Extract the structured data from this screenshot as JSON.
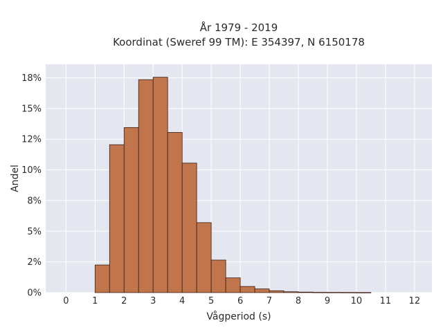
{
  "chart_data": {
    "type": "bar",
    "title_line1": "År 1979 - 2019",
    "title_line2": "Koordinat (Sweref 99 TM): E 354397, N 6150178",
    "xlabel": "Vågperiod (s)",
    "ylabel": "Andel",
    "bin_width": 0.5,
    "bins": [
      {
        "x0": 1.0,
        "value": 2.25
      },
      {
        "x0": 1.5,
        "value": 12.05
      },
      {
        "x0": 2.0,
        "value": 13.45
      },
      {
        "x0": 2.5,
        "value": 17.35
      },
      {
        "x0": 3.0,
        "value": 17.55
      },
      {
        "x0": 3.5,
        "value": 13.05
      },
      {
        "x0": 4.0,
        "value": 10.55
      },
      {
        "x0": 4.5,
        "value": 5.7
      },
      {
        "x0": 5.0,
        "value": 2.65
      },
      {
        "x0": 5.5,
        "value": 1.2
      },
      {
        "x0": 6.0,
        "value": 0.5
      },
      {
        "x0": 6.5,
        "value": 0.3
      },
      {
        "x0": 7.0,
        "value": 0.15
      },
      {
        "x0": 7.5,
        "value": 0.07
      },
      {
        "x0": 8.0,
        "value": 0.04
      },
      {
        "x0": 8.5,
        "value": 0.02
      },
      {
        "x0": 9.0,
        "value": 0.015
      },
      {
        "x0": 9.5,
        "value": 0.01
      },
      {
        "x0": 10.0,
        "value": 0.005
      }
    ],
    "xlim": [
      -0.7,
      12.6
    ],
    "ylim": [
      0,
      18.6
    ],
    "xticks": [
      0,
      1,
      2,
      3,
      4,
      5,
      6,
      7,
      8,
      9,
      10,
      11,
      12
    ],
    "xtick_labels": [
      "0",
      "1",
      "2",
      "3",
      "4",
      "5",
      "6",
      "7",
      "8",
      "9",
      "10",
      "11",
      "12"
    ],
    "yticks": [
      0,
      2.5,
      5,
      7.5,
      10,
      12.5,
      15,
      17.5
    ],
    "ytick_labels": [
      "0%",
      "2%",
      "5%",
      "8%",
      "10%",
      "12%",
      "15%",
      "18%"
    ],
    "colors": {
      "bar_fill": "#c0754d",
      "bar_edge": "#3b1f12",
      "plot_background": "#e5e7f0",
      "grid": "#ffffff"
    },
    "grid": true
  }
}
